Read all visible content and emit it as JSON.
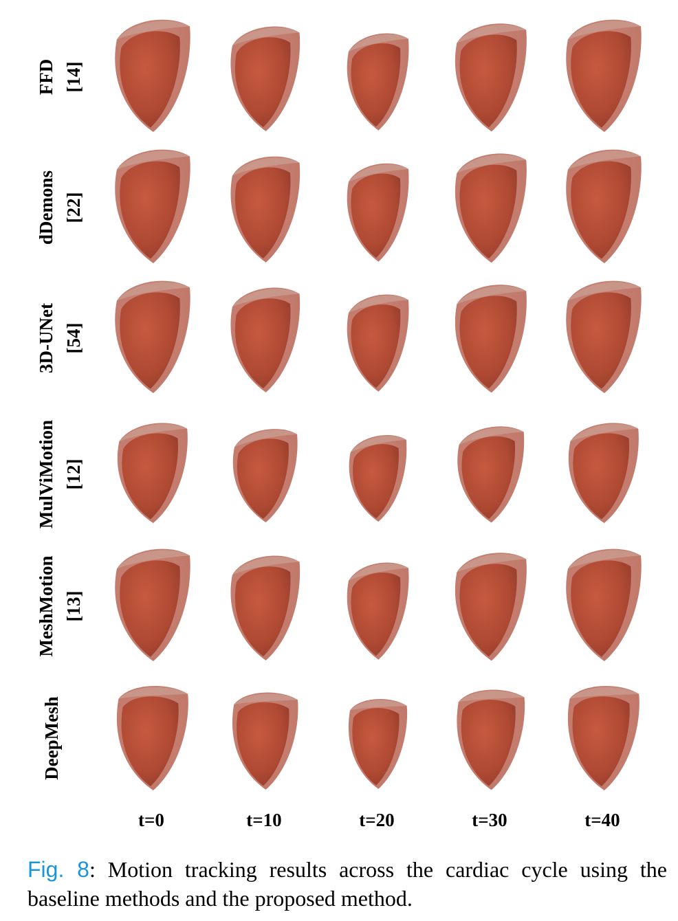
{
  "rows": [
    {
      "method": "FFD",
      "ref": "[14]"
    },
    {
      "method": "dDemons",
      "ref": "[22]"
    },
    {
      "method": "3D-UNet",
      "ref": "[54]"
    },
    {
      "method": "MulViMotion",
      "ref": "[12]"
    },
    {
      "method": "MeshMotion",
      "ref": "[13]"
    },
    {
      "method": "DeepMesh",
      "ref": ""
    }
  ],
  "columns": [
    "t=0",
    "t=10",
    "t=20",
    "t=30",
    "t=40"
  ],
  "caption": {
    "label": "Fig. 8",
    "text": ": Motion tracking results across the cardiac cycle using the baseline methods and the proposed method."
  },
  "colors": {
    "outer_wall": "#bd7466",
    "inner_wall": "#b04a34",
    "rim": "#c99a8e",
    "figure_label": "#1a96d8"
  }
}
